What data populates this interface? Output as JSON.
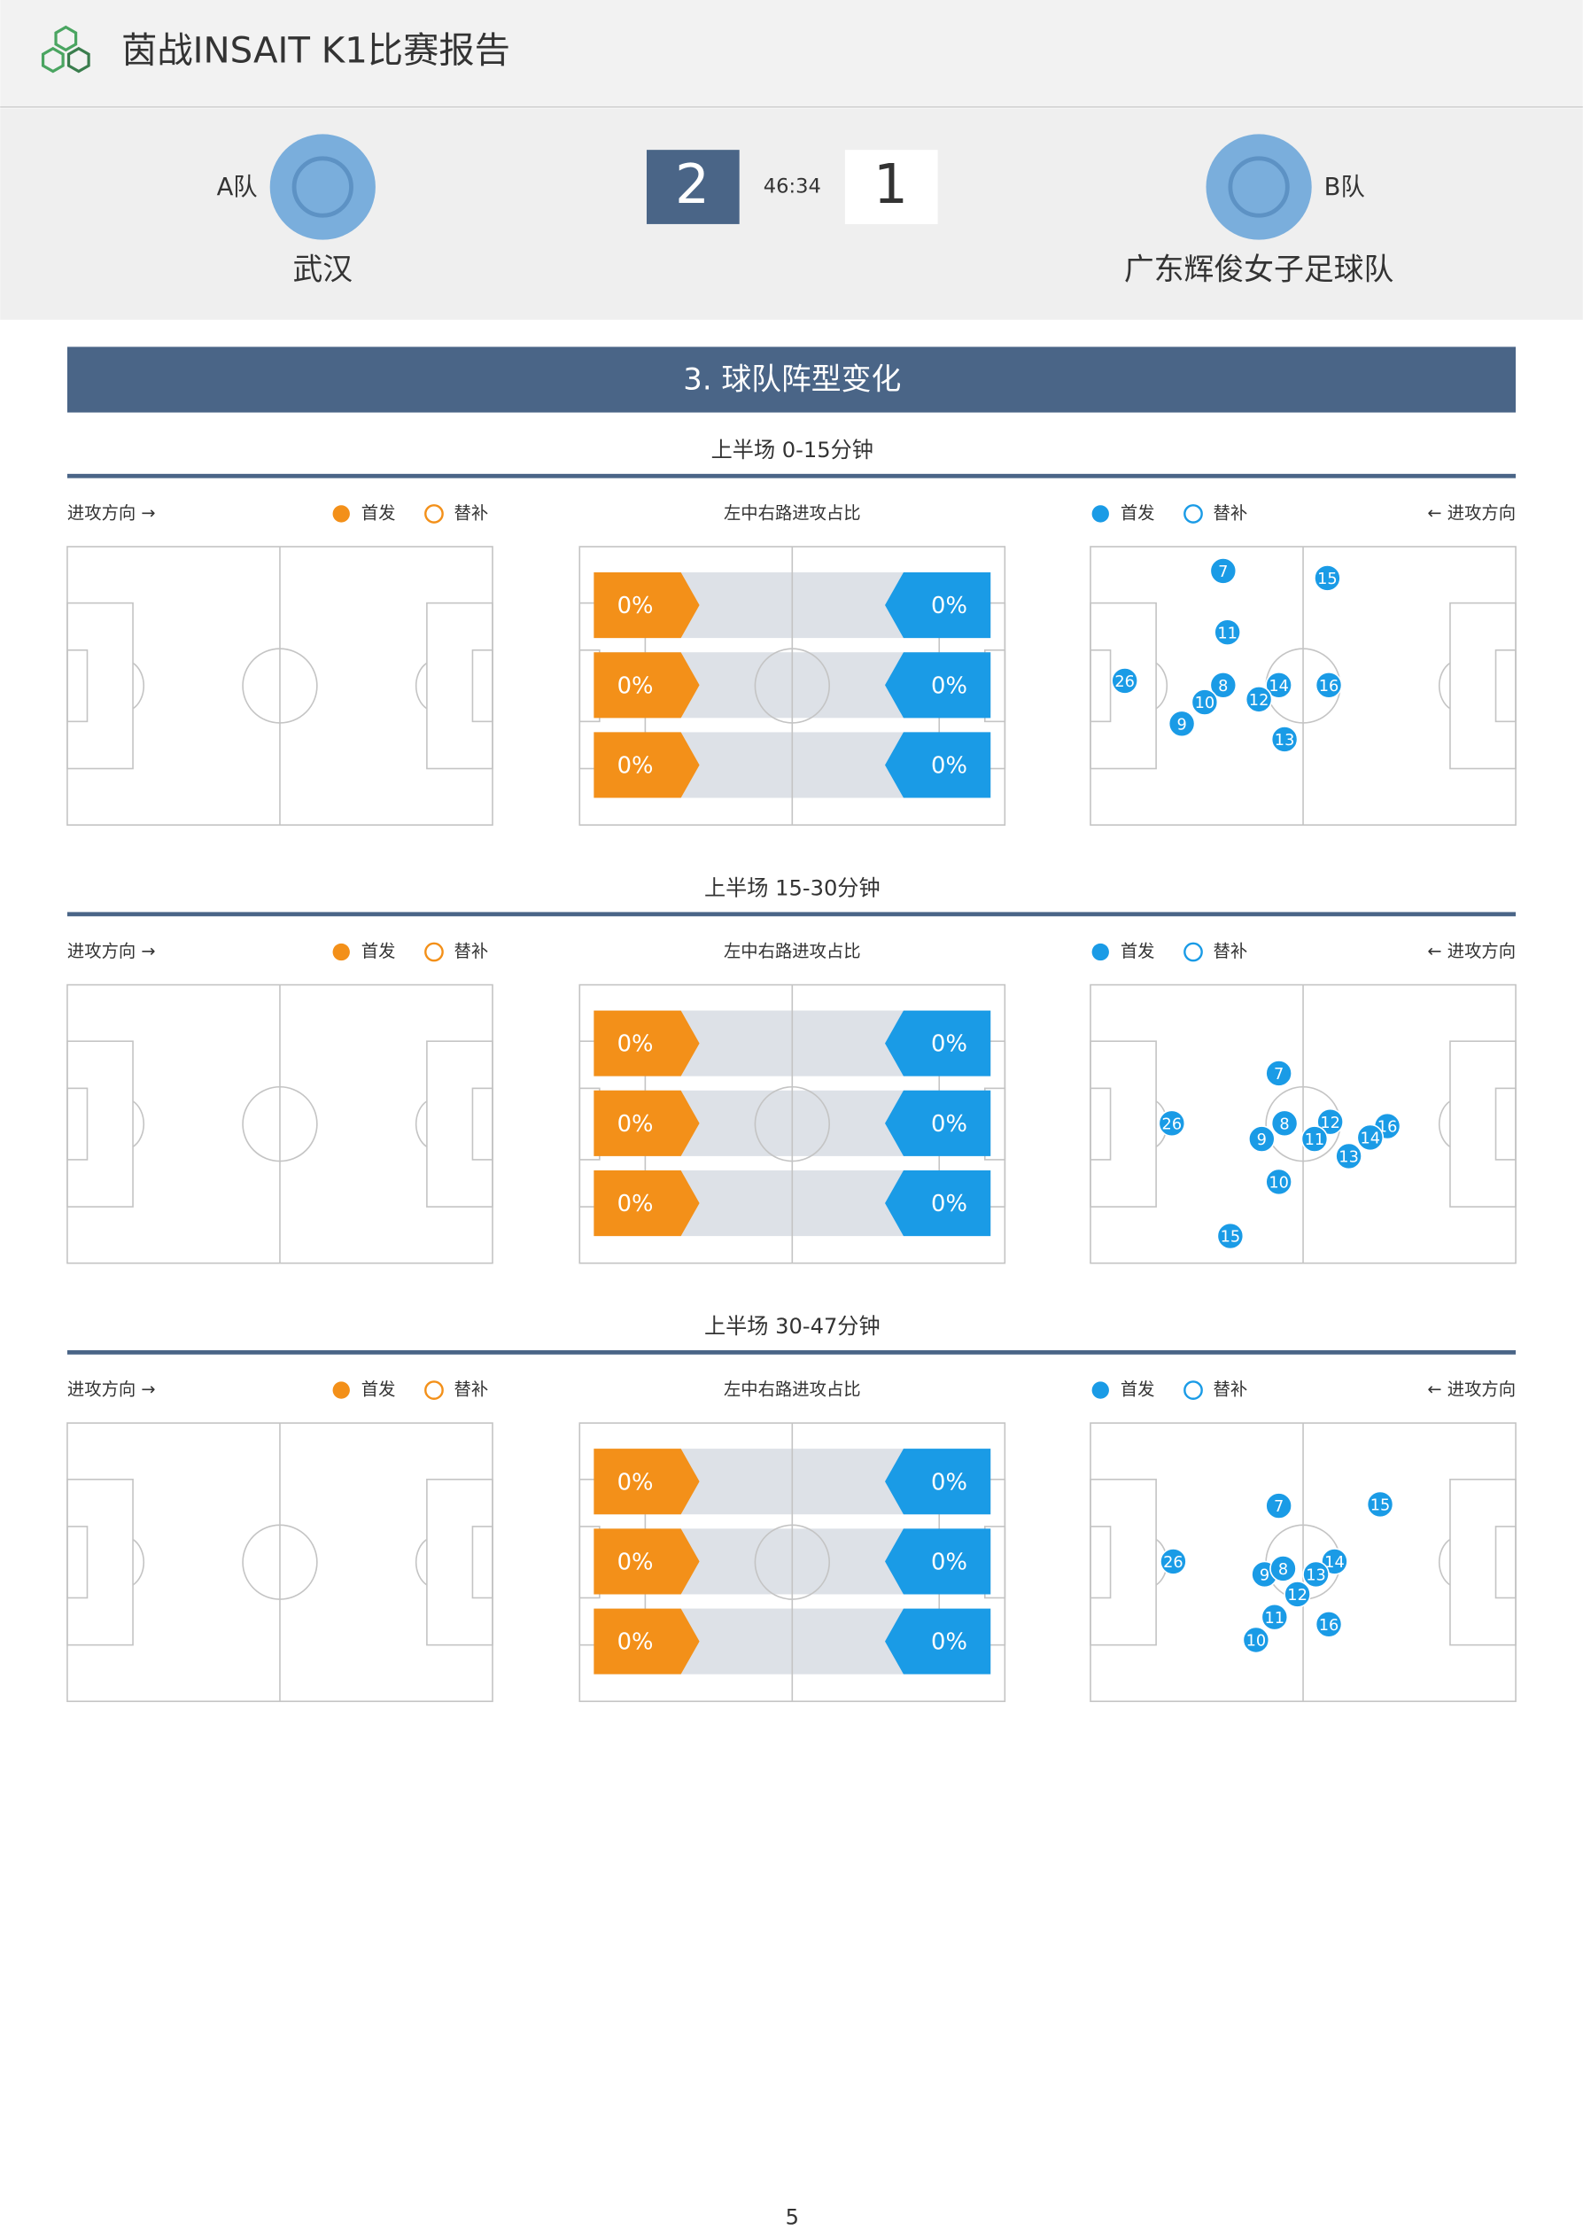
{
  "header": {
    "title": "茵战INSAIT K1比赛报告"
  },
  "match": {
    "home": {
      "label": "A队",
      "name": "武汉",
      "score": 2
    },
    "away": {
      "label": "B队",
      "name": "广东辉俊女子足球队",
      "score": 1
    },
    "time": "46:34"
  },
  "section_title": "3. 球队阵型变化",
  "periods": [
    {
      "title": "上半场 0-15分钟",
      "left": {
        "direction": "进攻方向 →",
        "legend": [
          "首发",
          "替补"
        ]
      },
      "middle": {
        "title": "左中右路进攻占比",
        "lanes": [
          {
            "home": "0%",
            "away": "0%"
          },
          {
            "home": "0%",
            "away": "0%"
          },
          {
            "home": "0%",
            "away": "0%"
          }
        ]
      },
      "right": {
        "legend": [
          "首发",
          "替补"
        ],
        "direction": "← 进攻方向",
        "players": [
          "7",
          "15",
          "11",
          "26",
          "8",
          "14",
          "16",
          "10",
          "12",
          "9",
          "13"
        ]
      }
    },
    {
      "title": "上半场 15-30分钟",
      "left": {
        "direction": "进攻方向 →",
        "legend": [
          "首发",
          "替补"
        ]
      },
      "middle": {
        "title": "左中右路进攻占比",
        "lanes": [
          {
            "home": "0%",
            "away": "0%"
          },
          {
            "home": "0%",
            "away": "0%"
          },
          {
            "home": "0%",
            "away": "0%"
          }
        ]
      },
      "right": {
        "legend": [
          "首发",
          "替补"
        ],
        "direction": "← 进攻方向",
        "players": [
          "7",
          "26",
          "8",
          "12",
          "16",
          "9",
          "11",
          "14",
          "13",
          "10",
          "15"
        ]
      }
    },
    {
      "title": "上半场 30-47分钟",
      "left": {
        "direction": "进攻方向 →",
        "legend": [
          "首发",
          "替补"
        ]
      },
      "middle": {
        "title": "左中右路进攻占比",
        "lanes": [
          {
            "home": "0%",
            "away": "0%"
          },
          {
            "home": "0%",
            "away": "0%"
          },
          {
            "home": "0%",
            "away": "0%"
          }
        ]
      },
      "right": {
        "legend": [
          "首发",
          "替补"
        ],
        "direction": "← 进攻方向",
        "players": [
          "7",
          "15",
          "26",
          "14",
          "9",
          "8",
          "13",
          "12",
          "11",
          "16",
          "10"
        ]
      }
    }
  ],
  "page_number": 5
}
